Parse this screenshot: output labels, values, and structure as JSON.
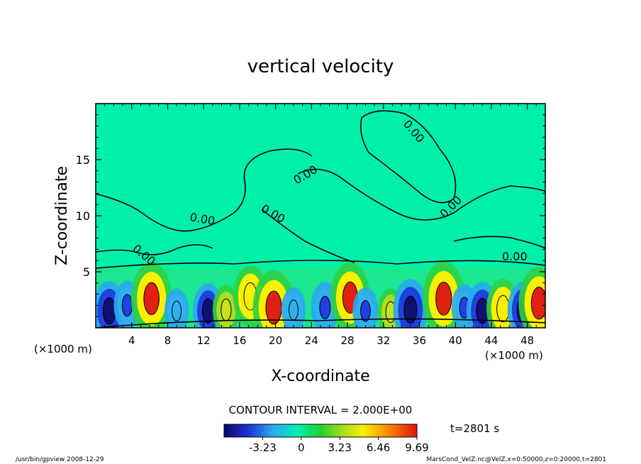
{
  "chart_data": {
    "type": "heatmap",
    "title": "vertical velocity",
    "xlabel": "X-coordinate",
    "ylabel": "Z-coordinate",
    "x_unit": "(×1000 m)",
    "y_unit": "(×1000 m)",
    "xlim": [
      0,
      50
    ],
    "ylim": [
      0,
      20
    ],
    "x_ticks": [
      "4",
      "8",
      "12",
      "16",
      "20",
      "24",
      "28",
      "32",
      "36",
      "40",
      "44",
      "48"
    ],
    "y_ticks": [
      "5",
      "10",
      "15"
    ],
    "contour_labels": [
      "0.00",
      "0.00",
      "0.00",
      "0.00",
      "0.00",
      "0.00",
      "0.00"
    ],
    "contour_interval_text": "CONTOUR INTERVAL = 2.000E+00",
    "colorbar_ticks": [
      "-3.23",
      "0",
      "3.23",
      "6.46",
      "9.69"
    ],
    "colorbar_range": [
      -6.46,
      9.69
    ],
    "time_text": "t=2801 s",
    "footer_left": "/usr/bin/gpview 2008-12-29",
    "footer_right": "MarsCond_VelZ.nc@VelZ,x=0:50000,z=0:20000,t=2801",
    "cells": [
      {
        "x": 1.5,
        "z": 1.5,
        "w": -6.0
      },
      {
        "x": 3.5,
        "z": 2.0,
        "w": -3.5
      },
      {
        "x": 6.2,
        "z": 2.6,
        "w": 9.0
      },
      {
        "x": 9.0,
        "z": 1.5,
        "w": -2.5
      },
      {
        "x": 12.5,
        "z": 1.5,
        "w": -5.0
      },
      {
        "x": 14.5,
        "z": 1.6,
        "w": 3.5
      },
      {
        "x": 17.2,
        "z": 2.8,
        "w": 6.5
      },
      {
        "x": 19.8,
        "z": 1.8,
        "w": 9.5
      },
      {
        "x": 22.0,
        "z": 1.6,
        "w": -2.5
      },
      {
        "x": 25.5,
        "z": 1.8,
        "w": -4.0
      },
      {
        "x": 28.3,
        "z": 2.7,
        "w": 8.5
      },
      {
        "x": 30.0,
        "z": 1.5,
        "w": -3.0
      },
      {
        "x": 32.8,
        "z": 1.4,
        "w": 3.0
      },
      {
        "x": 35.0,
        "z": 1.6,
        "w": -6.5
      },
      {
        "x": 38.7,
        "z": 2.6,
        "w": 9.5
      },
      {
        "x": 41.0,
        "z": 1.8,
        "w": -3.0
      },
      {
        "x": 43.0,
        "z": 1.5,
        "w": -5.5
      },
      {
        "x": 45.3,
        "z": 1.7,
        "w": 6.0
      },
      {
        "x": 47.5,
        "z": 1.6,
        "w": -5.0
      },
      {
        "x": 49.3,
        "z": 2.2,
        "w": 9.0
      }
    ]
  }
}
